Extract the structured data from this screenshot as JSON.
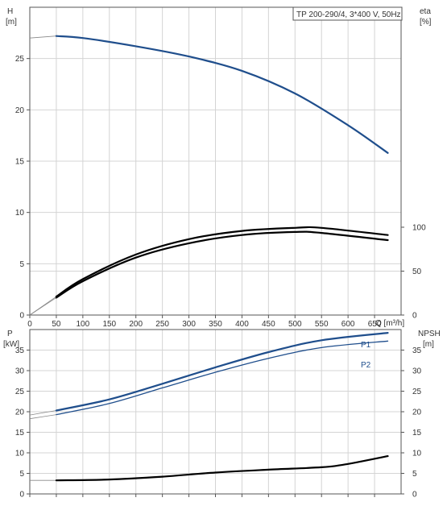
{
  "chart_data": [
    {
      "type": "line",
      "title": "TP 200-290/4, 3*400 V, 50Hz",
      "ylabel_left": [
        "H",
        "[m]"
      ],
      "ylabel_right": [
        "eta",
        "[%]"
      ],
      "xlabel": "Q [m³/h]",
      "x_ticks": [
        0,
        50,
        100,
        150,
        200,
        250,
        300,
        350,
        400,
        450,
        500,
        550,
        600,
        650
      ],
      "y_left_ticks": [
        0,
        5,
        10,
        15,
        20,
        25
      ],
      "y_right_ticks": [
        0,
        50,
        100
      ],
      "xlim": [
        0,
        700
      ],
      "ylim_left": [
        0,
        30
      ],
      "ylim_right": [
        0,
        100
      ],
      "grid": true,
      "series": [
        {
          "name": "",
          "color": "#1f4e8c",
          "axis": "left",
          "points": [
            [
              0,
              27.0
            ],
            [
              50,
              27.2
            ],
            [
              100,
              27.0
            ],
            [
              200,
              26.2
            ],
            [
              300,
              25.2
            ],
            [
              400,
              23.8
            ],
            [
              500,
              21.6
            ],
            [
              600,
              18.5
            ],
            [
              675,
              15.8
            ]
          ],
          "extrapolated_start": true
        },
        {
          "name": "",
          "color": "#000000",
          "axis": "left",
          "points": [
            [
              0,
              0.0
            ],
            [
              50,
              1.7
            ],
            [
              100,
              3.3
            ],
            [
              200,
              5.6
            ],
            [
              300,
              7.0
            ],
            [
              400,
              7.8
            ],
            [
              500,
              8.1
            ],
            [
              550,
              8.0
            ],
            [
              675,
              7.3
            ]
          ],
          "extrapolated_start": true
        },
        {
          "name": "",
          "color": "#000000",
          "axis": "left",
          "points": [
            [
              0,
              0.0
            ],
            [
              50,
              1.8
            ],
            [
              100,
              3.5
            ],
            [
              200,
              5.9
            ],
            [
              300,
              7.4
            ],
            [
              400,
              8.2
            ],
            [
              500,
              8.5
            ],
            [
              550,
              8.5
            ],
            [
              675,
              7.8
            ]
          ],
          "extrapolated_start": true
        }
      ]
    },
    {
      "type": "line",
      "title": "",
      "ylabel_left": [
        "P",
        "[kW]"
      ],
      "ylabel_right": [
        "NPSH",
        "[m]"
      ],
      "xlabel": "",
      "x_ticks": [],
      "y_left_ticks": [
        0,
        5,
        10,
        15,
        20,
        25,
        30,
        35
      ],
      "y_right_ticks": [
        0,
        5,
        10,
        15,
        20,
        25,
        30,
        35
      ],
      "xlim": [
        0,
        700
      ],
      "ylim_left": [
        0,
        40
      ],
      "ylim_right": [
        0,
        40
      ],
      "grid": true,
      "series": [
        {
          "name": "P1",
          "color": "#1f4e8c",
          "axis": "left",
          "points": [
            [
              0,
              19.2
            ],
            [
              50,
              20.3
            ],
            [
              150,
              23.0
            ],
            [
              250,
              26.8
            ],
            [
              350,
              30.8
            ],
            [
              450,
              34.5
            ],
            [
              550,
              37.4
            ],
            [
              675,
              39.2
            ]
          ],
          "extrapolated_start": true
        },
        {
          "name": "P2",
          "color": "#1f4e8c",
          "axis": "left",
          "points": [
            [
              0,
              18.3
            ],
            [
              50,
              19.3
            ],
            [
              150,
              22.0
            ],
            [
              250,
              25.8
            ],
            [
              350,
              29.6
            ],
            [
              450,
              33.0
            ],
            [
              550,
              35.6
            ],
            [
              675,
              37.2
            ]
          ],
          "extrapolated_start": true
        },
        {
          "name": "",
          "color": "#000000",
          "axis": "right",
          "points": [
            [
              0,
              3.3
            ],
            [
              50,
              3.3
            ],
            [
              150,
              3.5
            ],
            [
              250,
              4.2
            ],
            [
              350,
              5.2
            ],
            [
              450,
              5.9
            ],
            [
              550,
              6.5
            ],
            [
              600,
              7.3
            ],
            [
              675,
              9.2
            ]
          ],
          "extrapolated_start": true
        }
      ]
    }
  ]
}
